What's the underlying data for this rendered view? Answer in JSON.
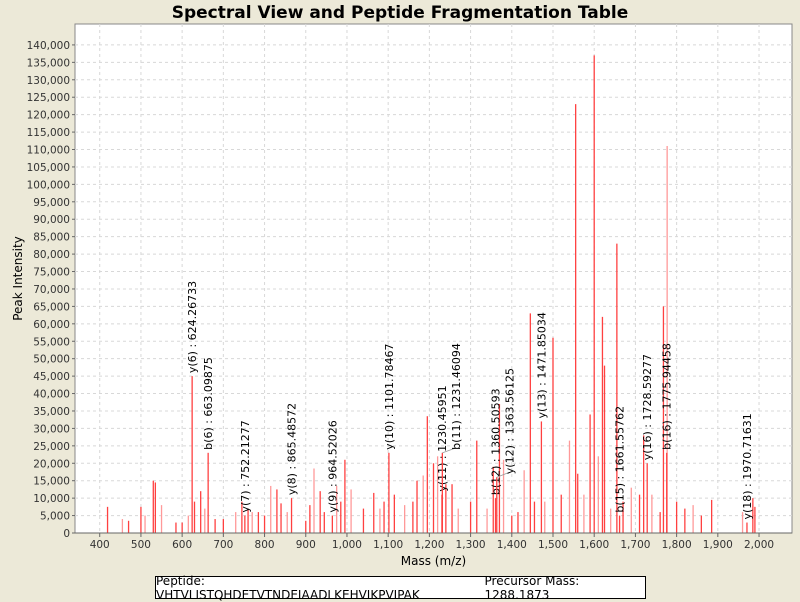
{
  "chart_data": {
    "type": "bar",
    "title": "Spectral View and Peptide Fragmentation Table",
    "xlabel": "Mass (m/z)",
    "ylabel": "Peak Intensity",
    "xlim": [
      340,
      2080
    ],
    "ylim": [
      0,
      146000
    ],
    "grid": true,
    "x_ticks": [
      "400",
      "500",
      "600",
      "700",
      "800",
      "900",
      "1,000",
      "1,100",
      "1,200",
      "1,300",
      "1,400",
      "1,500",
      "1,600",
      "1,700",
      "1,800",
      "1,900",
      "2,000"
    ],
    "x_tick_values": [
      400,
      500,
      600,
      700,
      800,
      900,
      1000,
      1100,
      1200,
      1300,
      1400,
      1500,
      1600,
      1700,
      1800,
      1900,
      2000
    ],
    "y_ticks": [
      "0",
      "5,000",
      "10,000",
      "15,000",
      "20,000",
      "25,000",
      "30,000",
      "35,000",
      "40,000",
      "45,000",
      "50,000",
      "55,000",
      "60,000",
      "65,000",
      "70,000",
      "75,000",
      "80,000",
      "85,000",
      "90,000",
      "95,000",
      "100,000",
      "105,000",
      "110,000",
      "115,000",
      "120,000",
      "125,000",
      "130,000",
      "135,000",
      "140,000"
    ],
    "y_tick_values": [
      0,
      5000,
      10000,
      15000,
      20000,
      25000,
      30000,
      35000,
      40000,
      45000,
      50000,
      55000,
      60000,
      65000,
      70000,
      75000,
      80000,
      85000,
      90000,
      95000,
      100000,
      105000,
      110000,
      115000,
      120000,
      125000,
      130000,
      135000,
      140000
    ],
    "peaks": [
      [
        419,
        7500
      ],
      [
        455,
        4000
      ],
      [
        470,
        3500
      ],
      [
        500,
        7500
      ],
      [
        510,
        5000
      ],
      [
        530,
        15000
      ],
      [
        535,
        14500
      ],
      [
        550,
        8000
      ],
      [
        585,
        3000
      ],
      [
        600,
        3000
      ],
      [
        615,
        5000
      ],
      [
        630,
        9000
      ],
      [
        645,
        12000
      ],
      [
        655,
        7000
      ],
      [
        680,
        4000
      ],
      [
        700,
        4000
      ],
      [
        730,
        6000
      ],
      [
        745,
        9000
      ],
      [
        760,
        7000
      ],
      [
        770,
        6000
      ],
      [
        785,
        6000
      ],
      [
        800,
        5000
      ],
      [
        815,
        13500
      ],
      [
        830,
        12500
      ],
      [
        840,
        8500
      ],
      [
        855,
        6000
      ],
      [
        900,
        3500
      ],
      [
        910,
        8000
      ],
      [
        920,
        18500
      ],
      [
        935,
        12000
      ],
      [
        945,
        6000
      ],
      [
        975,
        13500
      ],
      [
        985,
        9000
      ],
      [
        995,
        21000
      ],
      [
        1010,
        12500
      ],
      [
        1040,
        7000
      ],
      [
        1065,
        11500
      ],
      [
        1080,
        7000
      ],
      [
        1090,
        9000
      ],
      [
        1115,
        11000
      ],
      [
        1140,
        8000
      ],
      [
        1160,
        9000
      ],
      [
        1170,
        15000
      ],
      [
        1185,
        16500
      ],
      [
        1195,
        33500
      ],
      [
        1210,
        20000
      ],
      [
        1220,
        22000
      ],
      [
        1240,
        14000
      ],
      [
        1255,
        14000
      ],
      [
        1270,
        7000
      ],
      [
        1300,
        9000
      ],
      [
        1315,
        26500
      ],
      [
        1340,
        7000
      ],
      [
        1355,
        19000
      ],
      [
        1370,
        37000
      ],
      [
        1380,
        21000
      ],
      [
        1400,
        5000
      ],
      [
        1415,
        6000
      ],
      [
        1430,
        18000
      ],
      [
        1445,
        63000
      ],
      [
        1455,
        9000
      ],
      [
        1480,
        9000
      ],
      [
        1500,
        56000
      ],
      [
        1520,
        11000
      ],
      [
        1540,
        26500
      ],
      [
        1555,
        123000
      ],
      [
        1560,
        17000
      ],
      [
        1575,
        11000
      ],
      [
        1590,
        34000
      ],
      [
        1600,
        137000
      ],
      [
        1610,
        22000
      ],
      [
        1620,
        62000
      ],
      [
        1625,
        48000
      ],
      [
        1640,
        7000
      ],
      [
        1655,
        83000
      ],
      [
        1670,
        9000
      ],
      [
        1690,
        13000
      ],
      [
        1710,
        11000
      ],
      [
        1720,
        28000
      ],
      [
        1740,
        11000
      ],
      [
        1760,
        6000
      ],
      [
        1768,
        65000
      ],
      [
        1777,
        111000
      ],
      [
        1800,
        9000
      ],
      [
        1820,
        7000
      ],
      [
        1840,
        8000
      ],
      [
        1860,
        5000
      ],
      [
        1885,
        9500
      ],
      [
        1960,
        6000
      ],
      [
        1985,
        10000
      ],
      [
        1990,
        7500
      ]
    ],
    "annotations": [
      {
        "mz": 624.26733,
        "intensity": 45000,
        "label": "y(6) : 624.26733"
      },
      {
        "mz": 663.09875,
        "intensity": 23000,
        "label": "b(6) : 663.09875"
      },
      {
        "mz": 752.21277,
        "intensity": 5000,
        "label": "y(7) : 752.21277"
      },
      {
        "mz": 865.48572,
        "intensity": 10000,
        "label": "y(8) : 865.48572"
      },
      {
        "mz": 964.52026,
        "intensity": 5000,
        "label": "y(9) : 964.52026"
      },
      {
        "mz": 1101.78467,
        "intensity": 23000,
        "label": "y(10) : 1101.78467"
      },
      {
        "mz": 1230.45951,
        "intensity": 11000,
        "label": "y(11) : 1230.45951"
      },
      {
        "mz": 1231.46094,
        "intensity": 23000,
        "label": "b(11) : 1231.46094"
      },
      {
        "mz": 1360.50593,
        "intensity": 10000,
        "label": "b(12) : 1360.50593"
      },
      {
        "mz": 1363.56125,
        "intensity": 16000,
        "label": "y(12) : 1363.56125"
      },
      {
        "mz": 1471.85034,
        "intensity": 32000,
        "label": "y(13) : 1471.85034"
      },
      {
        "mz": 1661.55762,
        "intensity": 5000,
        "label": "b(15) : 1661.55762"
      },
      {
        "mz": 1728.59277,
        "intensity": 20000,
        "label": "y(16) : 1728.59277"
      },
      {
        "mz": 1775.94458,
        "intensity": 23000,
        "label": "b(16) : 1775.94458"
      },
      {
        "mz": 1970.71631,
        "intensity": 3000,
        "label": "y(18) : 1970.71631"
      }
    ],
    "colors": {
      "peak": "#ff4040",
      "peak_light": "#ff9999",
      "grid": "#d8d8d8"
    }
  },
  "legend": {
    "peptide": "Peptide: VHTVLISTQHDETVTNDEIAADLKEHVIKPVIPAK",
    "precursor": "Precursor Mass: 1288.1873"
  }
}
